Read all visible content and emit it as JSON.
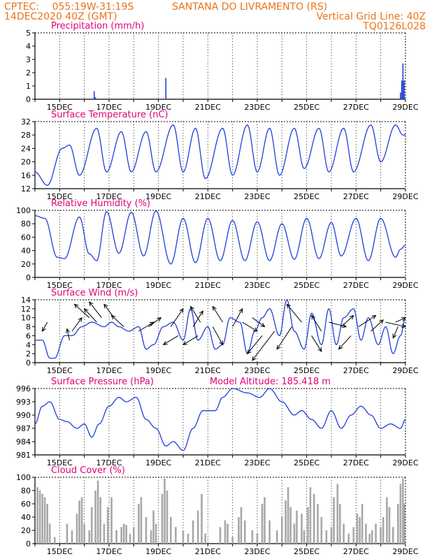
{
  "header": {
    "source": "CPTEC:",
    "coords": "055:19W-31:19S",
    "location": "SANTANA DO LIVRAMENTO (RS)",
    "run": "14DEC2020 40Z (GMT)",
    "grid_note": "Vertical Grid Line: 40Z",
    "model": "TQ0126L028"
  },
  "colors": {
    "header": "#e8741a",
    "title": "#e0007a",
    "series": "#1f3fd8",
    "bars": "#a8a8a8",
    "wind": "#000000"
  },
  "chart_data": [
    {
      "id": "precip",
      "type": "bar",
      "title": "Precipitation (mm/h)",
      "ylim": [
        0,
        5
      ],
      "yticks": [
        "0",
        "1",
        "2",
        "3",
        "4",
        "5"
      ],
      "xticks": [
        "15DEC",
        "17DEC",
        "19DEC",
        "21DEC",
        "23DEC",
        "25DEC",
        "27DEC",
        "29DEC"
      ],
      "points": [
        [
          16.4,
          0.6
        ],
        [
          16.45,
          0.15
        ],
        [
          19.3,
          1.6
        ],
        [
          28.8,
          0.5
        ],
        [
          28.85,
          1.4
        ],
        [
          28.9,
          2.7
        ],
        [
          28.95,
          1.4
        ]
      ]
    },
    {
      "id": "temp",
      "type": "line",
      "title": "Surface Temperature (nC)",
      "ylim": [
        12,
        32
      ],
      "yticks": [
        "12",
        "16",
        "20",
        "24",
        "28",
        "32"
      ],
      "xticks": [
        "15DEC",
        "17DEC",
        "19DEC",
        "21DEC",
        "23DEC",
        "25DEC",
        "27DEC",
        "29DEC"
      ],
      "keypoints": [
        [
          14,
          17
        ],
        [
          14.5,
          13
        ],
        [
          15.1,
          24
        ],
        [
          15.4,
          25
        ],
        [
          15.8,
          16
        ],
        [
          16.5,
          30
        ],
        [
          16.9,
          17
        ],
        [
          17.5,
          29
        ],
        [
          17.9,
          17
        ],
        [
          18.5,
          29
        ],
        [
          18.9,
          17
        ],
        [
          19.6,
          31
        ],
        [
          20.0,
          17
        ],
        [
          20.5,
          30
        ],
        [
          20.9,
          15
        ],
        [
          21.6,
          30
        ],
        [
          22.0,
          16
        ],
        [
          22.6,
          31
        ],
        [
          23.0,
          17
        ],
        [
          23.5,
          30
        ],
        [
          23.9,
          16
        ],
        [
          24.5,
          30
        ],
        [
          24.9,
          18
        ],
        [
          25.5,
          30
        ],
        [
          25.9,
          17
        ],
        [
          26.5,
          30
        ],
        [
          26.9,
          17
        ],
        [
          27.6,
          31
        ],
        [
          28.0,
          20
        ],
        [
          28.6,
          31
        ],
        [
          28.9,
          28
        ],
        [
          29,
          28
        ]
      ]
    },
    {
      "id": "rh",
      "type": "line",
      "title": "Relative Humidity (%)",
      "ylim": [
        0,
        100
      ],
      "yticks": [
        "0",
        "20",
        "40",
        "60",
        "80",
        "100"
      ],
      "xticks": [
        "15DEC",
        "17DEC",
        "19DEC",
        "21DEC",
        "23DEC",
        "25DEC",
        "27DEC",
        "29DEC"
      ],
      "keypoints": [
        [
          14,
          92
        ],
        [
          14.4,
          88
        ],
        [
          14.9,
          30
        ],
        [
          15.2,
          28
        ],
        [
          15.8,
          90
        ],
        [
          16.2,
          35
        ],
        [
          16.5,
          25
        ],
        [
          16.9,
          98
        ],
        [
          17.4,
          36
        ],
        [
          17.9,
          97
        ],
        [
          18.4,
          32
        ],
        [
          18.9,
          99
        ],
        [
          19.5,
          20
        ],
        [
          20,
          88
        ],
        [
          20.5,
          22
        ],
        [
          21,
          88
        ],
        [
          21.5,
          25
        ],
        [
          22,
          85
        ],
        [
          22.5,
          25
        ],
        [
          23,
          83
        ],
        [
          23.5,
          25
        ],
        [
          24,
          80
        ],
        [
          24.5,
          27
        ],
        [
          25,
          88
        ],
        [
          25.5,
          28
        ],
        [
          26,
          82
        ],
        [
          26.4,
          32
        ],
        [
          27,
          88
        ],
        [
          27.5,
          25
        ],
        [
          28,
          88
        ],
        [
          28.6,
          30
        ],
        [
          28.8,
          42
        ],
        [
          29,
          48
        ]
      ]
    },
    {
      "id": "wind",
      "type": "line",
      "title": "Surface Wind (m/s)",
      "ylim": [
        0,
        14
      ],
      "yticks": [
        "0",
        "2",
        "4",
        "6",
        "8",
        "10",
        "12",
        "14"
      ],
      "xticks": [
        "15DEC",
        "17DEC",
        "19DEC",
        "21DEC",
        "23DEC",
        "25DEC",
        "27DEC",
        "29DEC"
      ],
      "keypoints": [
        [
          14,
          5
        ],
        [
          14.3,
          5
        ],
        [
          14.6,
          1
        ],
        [
          14.8,
          1
        ],
        [
          15.2,
          6
        ],
        [
          15.5,
          6
        ],
        [
          15.9,
          8
        ],
        [
          16.3,
          9
        ],
        [
          16.8,
          8
        ],
        [
          17.1,
          9
        ],
        [
          17.4,
          8
        ],
        [
          17.8,
          7
        ],
        [
          18.2,
          8
        ],
        [
          18.5,
          3
        ],
        [
          18.8,
          4
        ],
        [
          19.2,
          8
        ],
        [
          19.6,
          9
        ],
        [
          20,
          5
        ],
        [
          20.3,
          12
        ],
        [
          20.6,
          5
        ],
        [
          21,
          8
        ],
        [
          21.3,
          3
        ],
        [
          21.6,
          4
        ],
        [
          21.9,
          10
        ],
        [
          22.3,
          9
        ],
        [
          22.6,
          2
        ],
        [
          22.9,
          7
        ],
        [
          23.2,
          10
        ],
        [
          23.5,
          12
        ],
        [
          23.9,
          6
        ],
        [
          24.2,
          14
        ],
        [
          24.5,
          7
        ],
        [
          24.9,
          3
        ],
        [
          25.2,
          11
        ],
        [
          25.6,
          4
        ],
        [
          25.9,
          12
        ],
        [
          26.2,
          4
        ],
        [
          26.5,
          10
        ],
        [
          26.9,
          12
        ],
        [
          27.2,
          5
        ],
        [
          27.5,
          10
        ],
        [
          27.9,
          4
        ],
        [
          28.2,
          8
        ],
        [
          28.5,
          2
        ],
        [
          28.8,
          6
        ],
        [
          29,
          10
        ]
      ],
      "arrows": [
        [
          14.5,
          9,
          14.3,
          7
        ],
        [
          15.5,
          7,
          15.9,
          10
        ],
        [
          15.4,
          5,
          15.3,
          7.5
        ],
        [
          16.2,
          10,
          15.6,
          13
        ],
        [
          16.5,
          9,
          16.0,
          12
        ],
        [
          16.7,
          10,
          16.2,
          13.5
        ],
        [
          17.2,
          10,
          16.8,
          13
        ],
        [
          17.6,
          8,
          17.1,
          10.5
        ],
        [
          18.2,
          7,
          18.8,
          9
        ],
        [
          18.6,
          8,
          19.1,
          10
        ],
        [
          19.5,
          8,
          20.0,
          12
        ],
        [
          19.8,
          6,
          19.2,
          4
        ],
        [
          20.4,
          8,
          20.8,
          11.5
        ],
        [
          20.7,
          9,
          20.3,
          12.5
        ],
        [
          20.6,
          6,
          20.0,
          4
        ],
        [
          21.2,
          8,
          21.6,
          4
        ],
        [
          21.6,
          9,
          21.2,
          12.5
        ],
        [
          22.0,
          8,
          22.4,
          12
        ],
        [
          22.4,
          9,
          23.0,
          7
        ],
        [
          22.8,
          10,
          23.3,
          8
        ],
        [
          23.2,
          6,
          22.6,
          2
        ],
        [
          23.7,
          7,
          22.8,
          0.5
        ],
        [
          24.4,
          8,
          23.8,
          3
        ],
        [
          24.8,
          9,
          24.2,
          13
        ],
        [
          25.2,
          6,
          25.6,
          2.5
        ],
        [
          25.6,
          7,
          25.2,
          10.5
        ],
        [
          25.9,
          9,
          26.6,
          8
        ],
        [
          26.4,
          8,
          26.9,
          10.5
        ],
        [
          26.8,
          6,
          26.3,
          3
        ],
        [
          27.1,
          8,
          27.8,
          10.5
        ],
        [
          27.6,
          7,
          28.1,
          9.5
        ],
        [
          28.2,
          9,
          29.0,
          8
        ],
        [
          28.6,
          9,
          29.0,
          10
        ],
        [
          28.7,
          8,
          28.5,
          5.5
        ]
      ]
    },
    {
      "id": "pressure",
      "type": "line",
      "title": "Surface Pressure (hPa)",
      "subtitle": "Model Altitude: 185.418 m",
      "ylim": [
        981,
        996
      ],
      "yticks": [
        "981",
        "984",
        "987",
        "990",
        "993",
        "996"
      ],
      "xticks": [
        "15DEC",
        "17DEC",
        "19DEC",
        "21DEC",
        "23DEC",
        "25DEC",
        "27DEC",
        "29DEC"
      ],
      "keypoints": [
        [
          14,
          988
        ],
        [
          14.3,
          992
        ],
        [
          14.6,
          993
        ],
        [
          15.0,
          989
        ],
        [
          15.3,
          988.5
        ],
        [
          15.7,
          987
        ],
        [
          16.0,
          988
        ],
        [
          16.3,
          985
        ],
        [
          16.6,
          988
        ],
        [
          17.0,
          992
        ],
        [
          17.4,
          994
        ],
        [
          17.7,
          993
        ],
        [
          18.1,
          994
        ],
        [
          18.5,
          989
        ],
        [
          18.9,
          987
        ],
        [
          19.3,
          983
        ],
        [
          19.6,
          984
        ],
        [
          20.0,
          982
        ],
        [
          20.4,
          987
        ],
        [
          20.8,
          991
        ],
        [
          21.3,
          991
        ],
        [
          21.6,
          994
        ],
        [
          22.0,
          996
        ],
        [
          22.6,
          995
        ],
        [
          23.1,
          994
        ],
        [
          23.5,
          996
        ],
        [
          24.0,
          993
        ],
        [
          24.5,
          990
        ],
        [
          24.8,
          991
        ],
        [
          25.2,
          989
        ],
        [
          25.6,
          987
        ],
        [
          26.0,
          991
        ],
        [
          26.4,
          987
        ],
        [
          26.8,
          990
        ],
        [
          27.2,
          992
        ],
        [
          27.6,
          990
        ],
        [
          28.0,
          987
        ],
        [
          28.4,
          988
        ],
        [
          28.8,
          987
        ],
        [
          29,
          989
        ]
      ]
    },
    {
      "id": "cloud",
      "type": "bar",
      "title": "Cloud Cover (%)",
      "ylim": [
        0,
        100
      ],
      "yticks": [
        "0",
        "20",
        "40",
        "60",
        "80",
        "100"
      ],
      "xticks": [
        "15DEC",
        "17DEC",
        "19DEC",
        "21DEC",
        "23DEC",
        "25DEC",
        "27DEC",
        "29DEC"
      ],
      "points": [
        [
          14.1,
          85
        ],
        [
          14.2,
          80
        ],
        [
          14.3,
          75
        ],
        [
          14.4,
          70
        ],
        [
          14.5,
          60
        ],
        [
          14.6,
          30
        ],
        [
          14.8,
          10
        ],
        [
          15.3,
          30
        ],
        [
          15.5,
          20
        ],
        [
          15.7,
          45
        ],
        [
          15.8,
          65
        ],
        [
          15.9,
          70
        ],
        [
          16.0,
          30
        ],
        [
          16.2,
          20
        ],
        [
          16.3,
          55
        ],
        [
          16.45,
          80
        ],
        [
          16.55,
          95
        ],
        [
          16.65,
          70
        ],
        [
          16.8,
          30
        ],
        [
          16.95,
          55
        ],
        [
          17.1,
          70
        ],
        [
          17.3,
          20
        ],
        [
          17.5,
          25
        ],
        [
          17.6,
          30
        ],
        [
          17.7,
          28
        ],
        [
          17.85,
          15
        ],
        [
          18.0,
          25
        ],
        [
          18.2,
          60
        ],
        [
          18.3,
          70
        ],
        [
          18.5,
          40
        ],
        [
          18.7,
          20
        ],
        [
          18.8,
          50
        ],
        [
          18.9,
          30
        ],
        [
          19.15,
          75
        ],
        [
          19.25,
          98
        ],
        [
          19.35,
          80
        ],
        [
          19.5,
          40
        ],
        [
          19.7,
          25
        ],
        [
          20.0,
          20
        ],
        [
          20.2,
          15
        ],
        [
          20.4,
          35
        ],
        [
          20.6,
          50
        ],
        [
          20.75,
          75
        ],
        [
          20.9,
          15
        ],
        [
          21.5,
          25
        ],
        [
          21.7,
          35
        ],
        [
          21.8,
          30
        ],
        [
          22.0,
          10
        ],
        [
          22.25,
          40
        ],
        [
          22.35,
          55
        ],
        [
          22.5,
          35
        ],
        [
          22.8,
          20
        ],
        [
          23.0,
          15
        ],
        [
          23.2,
          60
        ],
        [
          23.3,
          70
        ],
        [
          23.5,
          35
        ],
        [
          23.8,
          20
        ],
        [
          24.0,
          40
        ],
        [
          24.15,
          65
        ],
        [
          24.25,
          85
        ],
        [
          24.35,
          55
        ],
        [
          24.5,
          30
        ],
        [
          24.6,
          50
        ],
        [
          24.8,
          45
        ],
        [
          24.9,
          20
        ],
        [
          25.05,
          55
        ],
        [
          25.15,
          85
        ],
        [
          25.3,
          75
        ],
        [
          25.45,
          60
        ],
        [
          25.6,
          40
        ],
        [
          25.8,
          20
        ],
        [
          26.0,
          25
        ],
        [
          26.1,
          70
        ],
        [
          26.25,
          90
        ],
        [
          26.35,
          60
        ],
        [
          26.5,
          30
        ],
        [
          26.7,
          15
        ],
        [
          26.9,
          25
        ],
        [
          27.05,
          45
        ],
        [
          27.15,
          40
        ],
        [
          27.25,
          60
        ],
        [
          27.4,
          30
        ],
        [
          27.55,
          15
        ],
        [
          27.65,
          20
        ],
        [
          27.8,
          30
        ],
        [
          28.0,
          25
        ],
        [
          28.1,
          40
        ],
        [
          28.25,
          70
        ],
        [
          28.35,
          55
        ],
        [
          28.5,
          25
        ],
        [
          28.7,
          60
        ],
        [
          28.8,
          90
        ],
        [
          28.9,
          98
        ],
        [
          28.95,
          60
        ]
      ]
    }
  ]
}
